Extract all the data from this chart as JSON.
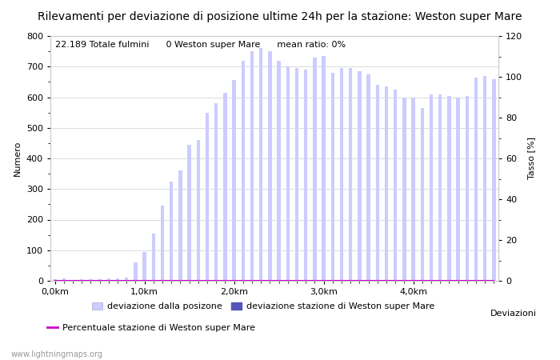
{
  "title": "Rilevamenti per deviazione di posizione ultime 24h per la stazione: Weston super Mare",
  "xlabel": "Deviazioni",
  "ylabel_left": "Numero",
  "ylabel_right": "Tasso [%]",
  "info_text": "22.189 Totale fulmini      0 Weston super Mare      mean ratio: 0%",
  "watermark": "www.lightningmaps.org",
  "ylim_left": [
    0,
    800
  ],
  "ylim_right": [
    0,
    120
  ],
  "yticks_left": [
    0,
    100,
    200,
    300,
    400,
    500,
    600,
    700,
    800
  ],
  "yticks_right": [
    0,
    20,
    40,
    60,
    80,
    100,
    120
  ],
  "xtick_labels": [
    "0,0km",
    "1,0km",
    "2,0km",
    "3,0km",
    "4,0km"
  ],
  "xtick_positions": [
    0,
    10,
    20,
    30,
    40
  ],
  "bar_color_light": "#ccccff",
  "bar_color_dark": "#5555bb",
  "line_color": "#cc00cc",
  "background_color": "#ffffff",
  "grid_color": "#cccccc",
  "n_bars": 50,
  "bar_values": [
    5,
    8,
    3,
    4,
    6,
    5,
    7,
    8,
    10,
    60,
    95,
    155,
    245,
    325,
    360,
    445,
    460,
    550,
    580,
    615,
    655,
    720,
    750,
    760,
    750,
    720,
    700,
    695,
    690,
    730,
    735,
    680,
    695,
    695,
    685,
    675,
    640,
    635,
    625,
    600,
    600,
    565,
    610,
    610,
    605,
    600,
    605,
    665,
    668,
    660
  ],
  "station_bar_values": [
    0,
    0,
    0,
    0,
    0,
    0,
    0,
    0,
    0,
    0,
    0,
    0,
    0,
    0,
    0,
    0,
    0,
    0,
    0,
    0,
    0,
    0,
    0,
    0,
    0,
    0,
    0,
    0,
    0,
    0,
    0,
    0,
    0,
    0,
    0,
    0,
    0,
    0,
    0,
    0,
    0,
    0,
    0,
    0,
    0,
    0,
    0,
    0,
    0,
    0
  ],
  "legend_label_light": "deviazione dalla posizone",
  "legend_label_dark": "deviazione stazione di Weston super Mare",
  "legend_label_line": "Percentuale stazione di Weston super Mare",
  "title_fontsize": 10,
  "label_fontsize": 8,
  "tick_fontsize": 8,
  "info_fontsize": 8
}
